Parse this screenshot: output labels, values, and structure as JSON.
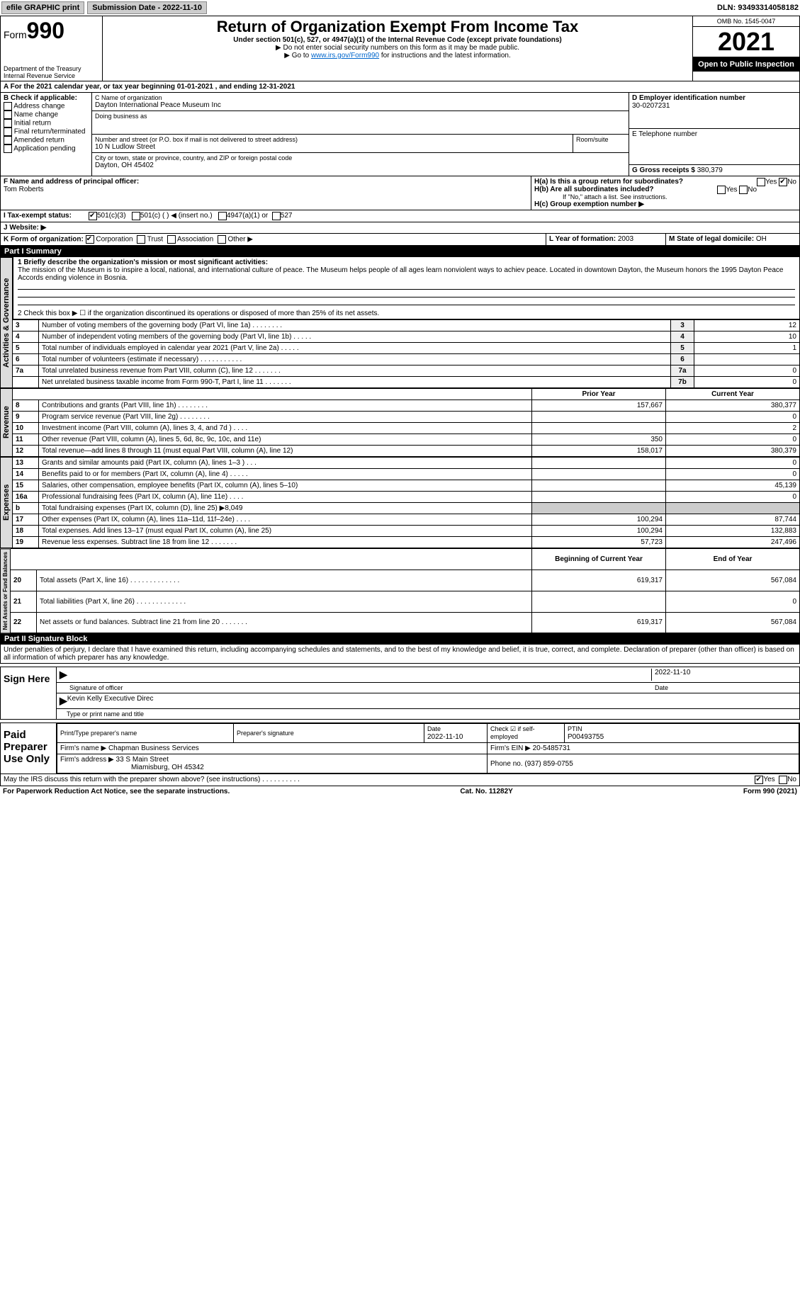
{
  "top": {
    "efile": "efile GRAPHIC print",
    "submission": "Submission Date - 2022-11-10",
    "dln": "DLN: 93493314058182"
  },
  "header": {
    "form_label": "Form",
    "form_num": "990",
    "dept": "Department of the Treasury",
    "irs": "Internal Revenue Service",
    "title": "Return of Organization Exempt From Income Tax",
    "sub1": "Under section 501(c), 527, or 4947(a)(1) of the Internal Revenue Code (except private foundations)",
    "sub2": "▶ Do not enter social security numbers on this form as it may be made public.",
    "sub3_pre": "▶ Go to ",
    "sub3_link": "www.irs.gov/Form990",
    "sub3_post": " for instructions and the latest information.",
    "omb": "OMB No. 1545-0047",
    "year": "2021",
    "open": "Open to Public Inspection"
  },
  "period": {
    "line": "For the 2021 calendar year, or tax year beginning 01-01-2021     , and ending 12-31-2021"
  },
  "boxB": {
    "title": "B Check if applicable:",
    "opts": [
      "Address change",
      "Name change",
      "Initial return",
      "Final return/terminated",
      "Amended return",
      "Application pending"
    ]
  },
  "boxC": {
    "label_name": "C Name of organization",
    "name": "Dayton International Peace Museum Inc",
    "dba_label": "Doing business as",
    "dba": "",
    "addr_label": "Number and street (or P.O. box if mail is not delivered to street address)",
    "room_label": "Room/suite",
    "addr": "10 N Ludlow Street",
    "city_label": "City or town, state or province, country, and ZIP or foreign postal code",
    "city": "Dayton, OH  45402"
  },
  "boxD": {
    "label": "D Employer identification number",
    "val": "30-0207231"
  },
  "boxE": {
    "label": "E Telephone number",
    "val": ""
  },
  "boxG": {
    "label": "G Gross receipts $",
    "val": "380,379"
  },
  "boxF": {
    "label": "F  Name and address of principal officer:",
    "name": "Tom Roberts"
  },
  "boxH": {
    "a": "H(a)  Is this a group return for subordinates?",
    "b": "H(b)  Are all subordinates included?",
    "b_note": "If \"No,\" attach a list. See instructions.",
    "c": "H(c)  Group exemption number ▶",
    "yes": "Yes",
    "no": "No"
  },
  "boxI": {
    "label": "I  Tax-exempt status:",
    "o1": "501(c)(3)",
    "o2": "501(c) (  ) ◀ (insert no.)",
    "o3": "4947(a)(1) or",
    "o4": "527"
  },
  "boxJ": {
    "label": "J  Website: ▶"
  },
  "boxK": {
    "label": "K Form of organization:",
    "o1": "Corporation",
    "o2": "Trust",
    "o3": "Association",
    "o4": "Other ▶"
  },
  "boxL": {
    "label": "L Year of formation:",
    "val": "2003"
  },
  "boxM": {
    "label": "M State of legal domicile:",
    "val": "OH"
  },
  "part1": {
    "title": "Part I      Summary",
    "gov_tab": "Activities & Governance",
    "rev_tab": "Revenue",
    "exp_tab": "Expenses",
    "net_tab": "Net Assets or Fund Balances",
    "l1_label": "1  Briefly describe the organization's mission or most significant activities:",
    "l1_text": "The mission of the Museum is to inspire a local, national, and international culture of peace. The Museum helps people of all ages learn nonviolent ways to achiev peace. Located in downtown Dayton, the Museum honors the 1995 Dayton Peace Accords ending violence in Bosnia.",
    "l2": "2  Check this box ▶ ☐  if the organization discontinued its operations or disposed of more than 25% of its net assets.",
    "rows_gov": [
      {
        "n": "3",
        "t": "Number of voting members of the governing body (Part VI, line 1a)    .    .    .    .    .    .    .    .",
        "c": "3",
        "v": "12"
      },
      {
        "n": "4",
        "t": "Number of independent voting members of the governing body (Part VI, line 1b)    .    .    .    .    .",
        "c": "4",
        "v": "10"
      },
      {
        "n": "5",
        "t": "Total number of individuals employed in calendar year 2021 (Part V, line 2a)    .    .    .    .    .",
        "c": "5",
        "v": "1"
      },
      {
        "n": "6",
        "t": "Total number of volunteers (estimate if necessary)    .    .    .    .    .    .    .    .    .    .    .",
        "c": "6",
        "v": ""
      },
      {
        "n": "7a",
        "t": "Total unrelated business revenue from Part VIII, column (C), line 12    .    .    .    .    .    .    .",
        "c": "7a",
        "v": "0"
      },
      {
        "n": "",
        "t": "Net unrelated business taxable income from Form 990-T, Part I, line 11    .    .    .    .    .    .    .",
        "c": "7b",
        "v": "0"
      }
    ],
    "hdr_prior": "Prior Year",
    "hdr_curr": "Current Year",
    "rows_rev": [
      {
        "n": "8",
        "t": "Contributions and grants (Part VIII, line 1h)    .    .    .    .    .    .    .    .",
        "p": "157,667",
        "c": "380,377"
      },
      {
        "n": "9",
        "t": "Program service revenue (Part VIII, line 2g)    .    .    .    .    .    .    .    .",
        "p": "",
        "c": "0"
      },
      {
        "n": "10",
        "t": "Investment income (Part VIII, column (A), lines 3, 4, and 7d )    .    .    .    .",
        "p": "",
        "c": "2"
      },
      {
        "n": "11",
        "t": "Other revenue (Part VIII, column (A), lines 5, 6d, 8c, 9c, 10c, and 11e)",
        "p": "350",
        "c": "0"
      },
      {
        "n": "12",
        "t": "Total revenue—add lines 8 through 11 (must equal Part VIII, column (A), line 12)",
        "p": "158,017",
        "c": "380,379"
      }
    ],
    "rows_exp": [
      {
        "n": "13",
        "t": "Grants and similar amounts paid (Part IX, column (A), lines 1–3 )    .    .    .",
        "p": "",
        "c": "0"
      },
      {
        "n": "14",
        "t": "Benefits paid to or for members (Part IX, column (A), line 4)    .    .    .    .    .",
        "p": "",
        "c": "0"
      },
      {
        "n": "15",
        "t": "Salaries, other compensation, employee benefits (Part IX, column (A), lines 5–10)",
        "p": "",
        "c": "45,139"
      },
      {
        "n": "16a",
        "t": "Professional fundraising fees (Part IX, column (A), line 11e)    .    .    .    .",
        "p": "",
        "c": "0"
      },
      {
        "n": "b",
        "t": "Total fundraising expenses (Part IX, column (D), line 25) ▶8,049",
        "p": "SHADE",
        "c": "SHADE"
      },
      {
        "n": "17",
        "t": "Other expenses (Part IX, column (A), lines 11a–11d, 11f–24e)    .    .    .    .",
        "p": "100,294",
        "c": "87,744"
      },
      {
        "n": "18",
        "t": "Total expenses. Add lines 13–17 (must equal Part IX, column (A), line 25)",
        "p": "100,294",
        "c": "132,883"
      },
      {
        "n": "19",
        "t": "Revenue less expenses. Subtract line 18 from line 12    .    .    .    .    .    .    .",
        "p": "57,723",
        "c": "247,496"
      }
    ],
    "hdr_begin": "Beginning of Current Year",
    "hdr_end": "End of Year",
    "rows_net": [
      {
        "n": "20",
        "t": "Total assets (Part X, line 16)    .    .    .    .    .    .    .    .    .    .    .    .    .",
        "p": "619,317",
        "c": "567,084"
      },
      {
        "n": "21",
        "t": "Total liabilities (Part X, line 26)    .    .    .    .    .    .    .    .    .    .    .    .    .",
        "p": "",
        "c": "0"
      },
      {
        "n": "22",
        "t": "Net assets or fund balances. Subtract line 21 from line 20    .    .    .    .    .    .    .",
        "p": "619,317",
        "c": "567,084"
      }
    ]
  },
  "part2": {
    "title": "Part II      Signature Block",
    "decl": "Under penalties of perjury, I declare that I have examined this return, including accompanying schedules and statements, and to the best of my knowledge and belief, it is true, correct, and complete. Declaration of preparer (other than officer) is based on all information of which preparer has any knowledge.",
    "sign_here": "Sign Here",
    "sig_officer": "Signature of officer",
    "sig_date": "2022-11-10",
    "date_label": "Date",
    "officer_name": "Kevin Kelly  Executive Direc",
    "type_name": "Type or print name and title",
    "paid": "Paid Preparer Use Only",
    "prep_name_label": "Print/Type preparer's name",
    "prep_sig_label": "Preparer's signature",
    "prep_date": "2022-11-10",
    "check_self": "Check ☑ if self-employed",
    "ptin_label": "PTIN",
    "ptin": "P00493755",
    "firm_name_label": "Firm's name    ▶",
    "firm_name": "Chapman Business Services",
    "firm_ein_label": "Firm's EIN ▶",
    "firm_ein": "20-5485731",
    "firm_addr_label": "Firm's address ▶",
    "firm_addr1": "33 S Main Street",
    "firm_addr2": "Miamisburg, OH  45342",
    "phone_label": "Phone no.",
    "phone": "(937) 859-0755",
    "discuss": "May the IRS discuss this return with the preparer shown above? (see instructions)    .    .    .    .    .    .    .    .    .    .",
    "yes": "Yes",
    "no": "No"
  },
  "footer": {
    "pra": "For Paperwork Reduction Act Notice, see the separate instructions.",
    "cat": "Cat. No. 11282Y",
    "form": "Form 990 (2021)"
  },
  "colors": {
    "link": "#0066cc"
  }
}
